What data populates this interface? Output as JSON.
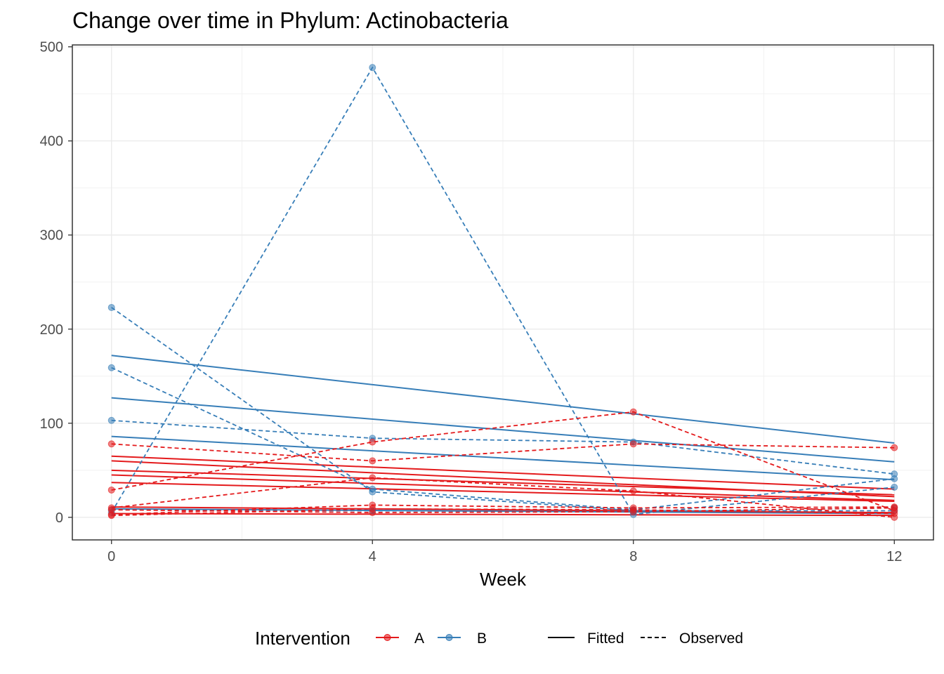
{
  "chart_data": {
    "type": "line",
    "title": "Change over time in Phylum: Actinobacteria",
    "xlabel": "Week",
    "ylabel": "",
    "x_ticks": [
      "0",
      "4",
      "8",
      "12"
    ],
    "y_ticks": [
      "0",
      "100",
      "200",
      "300",
      "400",
      "500"
    ],
    "xlim": [
      -0.6,
      12.6
    ],
    "ylim": [
      -24,
      502
    ],
    "grid": true,
    "colors": {
      "A": "#e41a1c",
      "B": "#377eb8"
    },
    "legend": {
      "position": "bottom",
      "title": "Intervention",
      "groups": [
        {
          "key": "A",
          "label": "A"
        },
        {
          "key": "B",
          "label": "B"
        }
      ],
      "linetypes": [
        {
          "key": "fitted",
          "label": "Fitted"
        },
        {
          "key": "observed",
          "label": "Observed"
        }
      ]
    },
    "weeks": [
      0,
      4,
      8,
      12
    ],
    "observed": [
      {
        "name": "B-1",
        "group": "B",
        "values": [
          223,
          27,
          7,
          7
        ]
      },
      {
        "name": "B-2",
        "group": "B",
        "values": [
          5,
          478,
          3,
          32
        ]
      },
      {
        "name": "B-3",
        "group": "B",
        "values": [
          103,
          84,
          80,
          46
        ]
      },
      {
        "name": "B-4",
        "group": "B",
        "values": [
          159,
          30,
          8,
          41
        ]
      },
      {
        "name": "B-5",
        "group": "B",
        "values": [
          8,
          7,
          6,
          10
        ]
      },
      {
        "name": "A-1",
        "group": "A",
        "values": [
          78,
          60,
          78,
          74
        ]
      },
      {
        "name": "A-2",
        "group": "A",
        "values": [
          29,
          80,
          112,
          7
        ]
      },
      {
        "name": "A-3",
        "group": "A",
        "values": [
          10,
          42,
          28,
          0
        ]
      },
      {
        "name": "A-4",
        "group": "A",
        "values": [
          3,
          13,
          10,
          11
        ]
      },
      {
        "name": "A-5",
        "group": "A",
        "values": [
          8,
          5,
          6,
          10
        ]
      },
      {
        "name": "A-6",
        "group": "A",
        "values": [
          2,
          9,
          8,
          4
        ]
      }
    ],
    "fitted": [
      {
        "name": "B-fit-1",
        "group": "B",
        "start": 172,
        "end": 79
      },
      {
        "name": "B-fit-2",
        "group": "B",
        "start": 127,
        "end": 59
      },
      {
        "name": "B-fit-3",
        "group": "B",
        "start": 86,
        "end": 40
      },
      {
        "name": "B-fit-4",
        "group": "B",
        "start": 9,
        "end": 4
      },
      {
        "name": "A-fit-1",
        "group": "A",
        "start": 65,
        "end": 30
      },
      {
        "name": "A-fit-2",
        "group": "A",
        "start": 60,
        "end": 22
      },
      {
        "name": "A-fit-3",
        "group": "A",
        "start": 50,
        "end": 24
      },
      {
        "name": "A-fit-4",
        "group": "A",
        "start": 45,
        "end": 18
      },
      {
        "name": "A-fit-5",
        "group": "A",
        "start": 37,
        "end": 17
      },
      {
        "name": "A-fit-6",
        "group": "A",
        "start": 11,
        "end": 5
      },
      {
        "name": "A-fit-7",
        "group": "A",
        "start": 4,
        "end": 2
      }
    ]
  }
}
